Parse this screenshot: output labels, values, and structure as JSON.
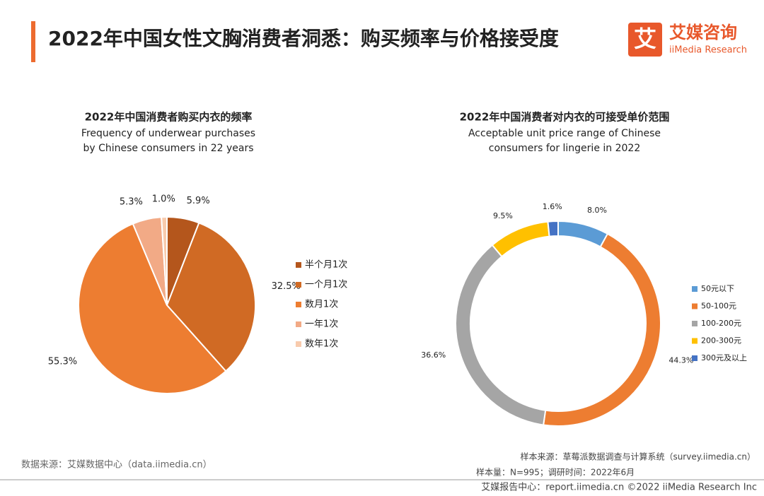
{
  "header": {
    "title": "2022年中国女性文胸消费者洞悉：购买频率与价格接受度",
    "logo_icon": "艾",
    "logo_cn": "艾媒咨询",
    "logo_en": "iiMedia Research"
  },
  "chart_data": [
    {
      "type": "pie",
      "title": "2022年中国消费者购买内衣的频率",
      "subtitle": [
        "Frequency of underwear purchases",
        "by Chinese consumers in 22 years"
      ],
      "categories": [
        "半个月1次",
        "一个月1次",
        "数月1次",
        "一年1次",
        "数年1次"
      ],
      "values": [
        5.9,
        32.5,
        55.3,
        5.3,
        1.0
      ],
      "value_labels": [
        "5.9%",
        "32.5%",
        "55.3%",
        "5.3%",
        "1.0%"
      ],
      "colors": [
        "#b4561c",
        "#d06a24",
        "#ed7d31",
        "#f2aa86",
        "#f8cbad"
      ]
    },
    {
      "type": "donut",
      "title": "2022年中国消费者对内衣的可接受单价范围",
      "subtitle": [
        "Acceptable unit price range of Chinese",
        "consumers for lingerie in 2022"
      ],
      "categories": [
        "50元以下",
        "50-100元",
        "100-200元",
        "200-300元",
        "300元及以上"
      ],
      "values": [
        8.0,
        44.3,
        36.6,
        9.5,
        1.6
      ],
      "value_labels": [
        "8.0%",
        "44.3%",
        "36.6%",
        "9.5%",
        "1.6%"
      ],
      "colors": [
        "#5b9bd5",
        "#ed7d31",
        "#a5a5a5",
        "#ffc000",
        "#4472c4"
      ]
    }
  ],
  "footer": {
    "source": "数据来源：艾媒数据中心（data.iimedia.cn）",
    "sample_source": "样本来源：草莓派数据调查与计算系统（survey.iimedia.cn）",
    "sample_size": "样本量：N=995；调研时间：2022年6月",
    "report": "艾媒报告中心：report.iimedia.cn  ©2022  iiMedia Research Inc"
  }
}
